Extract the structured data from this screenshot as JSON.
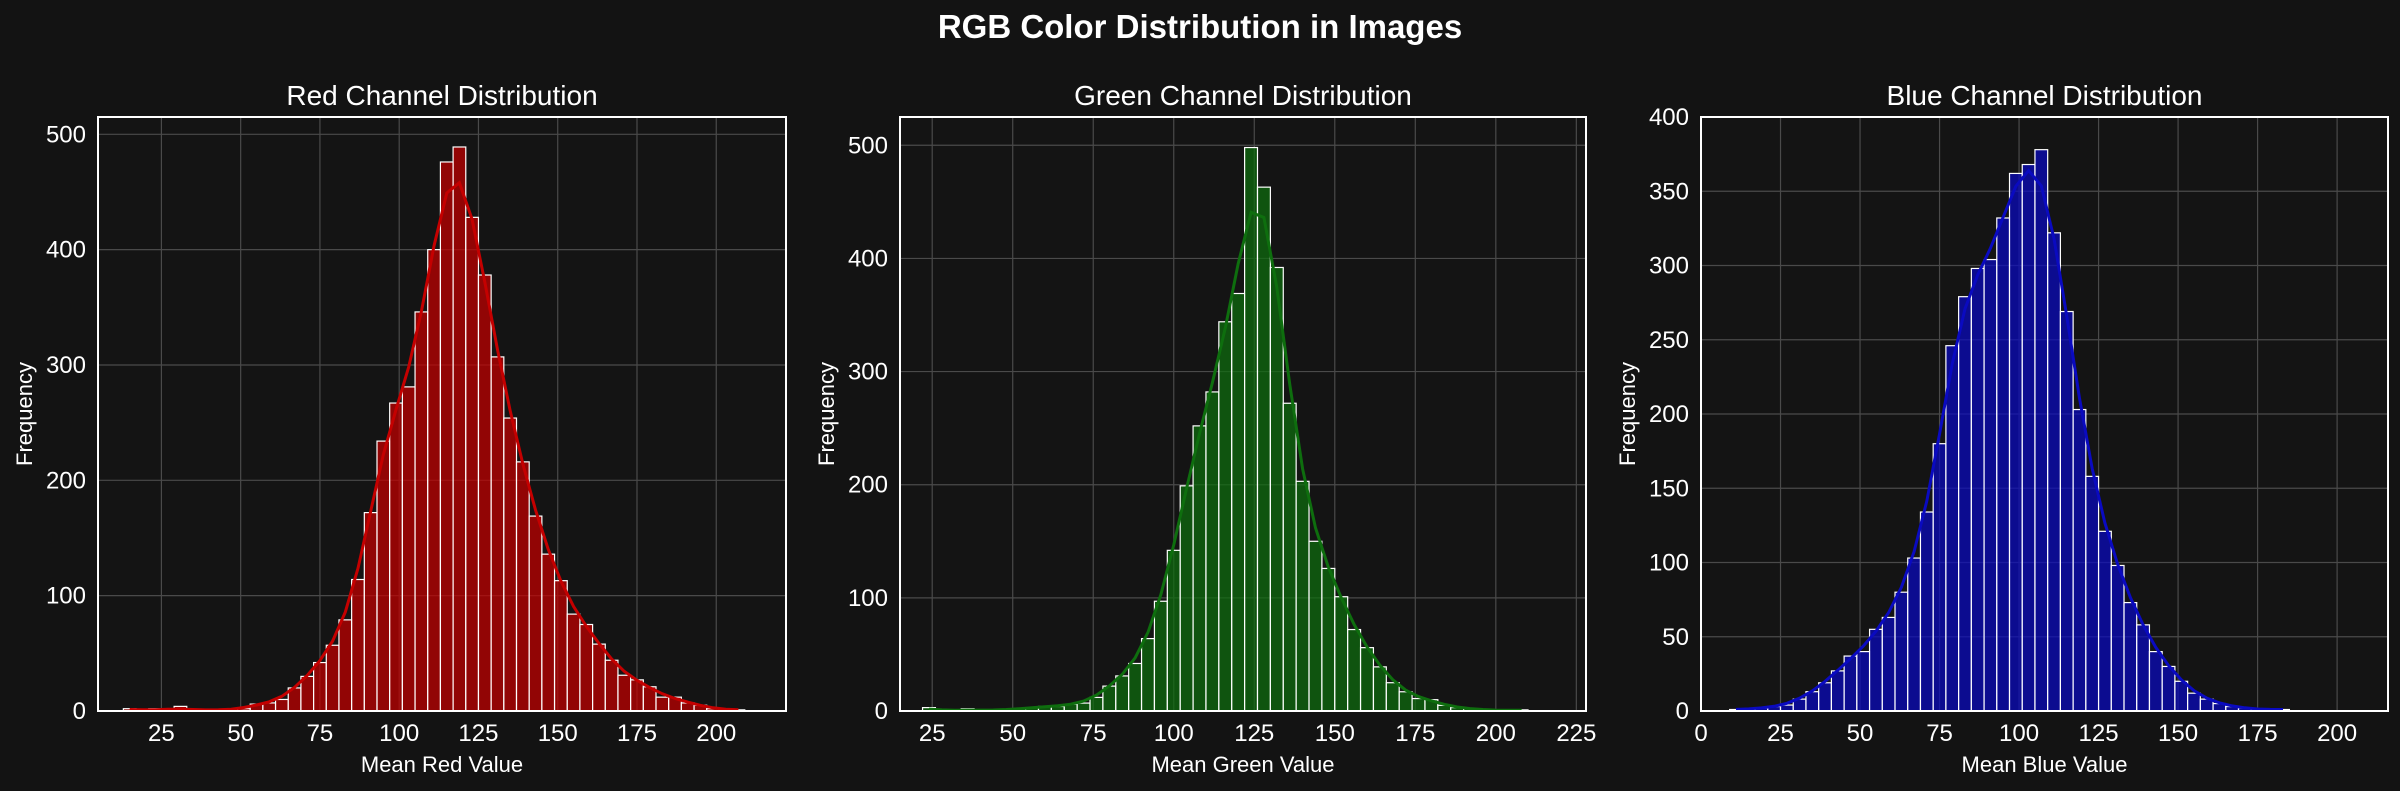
{
  "figure": {
    "title": "RGB Color Distribution in Images"
  },
  "chart_data": [
    {
      "type": "bar",
      "title": "Red Channel Distribution",
      "xlabel": "Mean Red Value",
      "ylabel": "Frequency",
      "color": "#c40000",
      "kde": true,
      "grid": true,
      "xlim": [
        5,
        222
      ],
      "ylim": [
        0,
        515
      ],
      "xticks": [
        25,
        50,
        75,
        100,
        125,
        150,
        175,
        200
      ],
      "yticks": [
        0,
        100,
        200,
        300,
        400,
        500
      ],
      "bin_width": 4.0,
      "bin_start": 13,
      "values": [
        2,
        0,
        2,
        0,
        4,
        0,
        1,
        1,
        1,
        2,
        6,
        7,
        10,
        20,
        30,
        42,
        57,
        79,
        114,
        172,
        234,
        267,
        281,
        346,
        400,
        476,
        489,
        428,
        378,
        307,
        254,
        216,
        169,
        136,
        113,
        84,
        75,
        58,
        44,
        31,
        27,
        21,
        12,
        12,
        7,
        5,
        2,
        1,
        1
      ]
    },
    {
      "type": "bar",
      "title": "Green Channel Distribution",
      "xlabel": "Mean Green Value",
      "ylabel": "Frequency",
      "color": "#0e6e0e",
      "kde": true,
      "grid": true,
      "xlim": [
        15,
        228
      ],
      "ylim": [
        0,
        525
      ],
      "xticks": [
        25,
        50,
        75,
        100,
        125,
        150,
        175,
        200,
        225
      ],
      "yticks": [
        0,
        100,
        200,
        300,
        400,
        500
      ],
      "bin_width": 4.0,
      "bin_start": 22,
      "values": [
        3,
        0,
        0,
        2,
        0,
        1,
        1,
        2,
        3,
        4,
        4,
        6,
        7,
        12,
        22,
        31,
        42,
        64,
        97,
        142,
        199,
        252,
        282,
        344,
        369,
        498,
        463,
        392,
        272,
        203,
        150,
        126,
        101,
        72,
        56,
        39,
        25,
        17,
        11,
        10,
        5,
        3,
        2,
        1,
        1,
        0,
        1
      ]
    },
    {
      "type": "bar",
      "title": "Blue Channel Distribution",
      "xlabel": "Mean Blue Value",
      "ylabel": "Frequency",
      "color": "#0a0ac0",
      "kde": true,
      "grid": true,
      "xlim": [
        0,
        216
      ],
      "ylim": [
        0,
        400
      ],
      "xticks": [
        0,
        25,
        50,
        75,
        100,
        125,
        150,
        175,
        200
      ],
      "yticks": [
        0,
        50,
        100,
        150,
        200,
        250,
        300,
        350,
        400
      ],
      "bin_width": 4.0,
      "bin_start": 9,
      "values": [
        1,
        1,
        2,
        3,
        4,
        8,
        13,
        19,
        27,
        37,
        40,
        55,
        63,
        80,
        103,
        134,
        180,
        246,
        279,
        298,
        304,
        332,
        362,
        368,
        378,
        322,
        269,
        203,
        158,
        121,
        98,
        73,
        58,
        40,
        30,
        20,
        12,
        8,
        5,
        3,
        2,
        1,
        1,
        1
      ]
    }
  ]
}
